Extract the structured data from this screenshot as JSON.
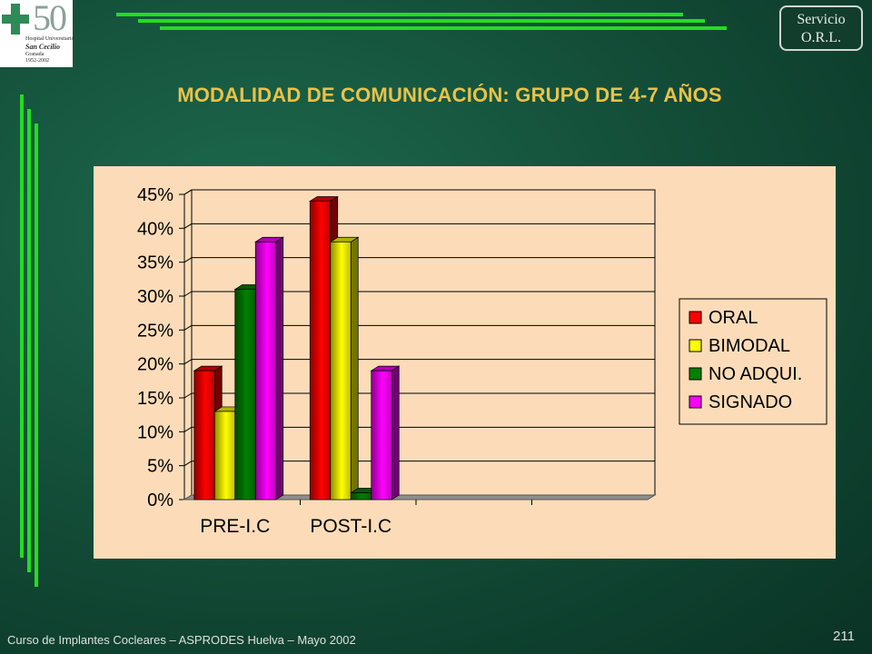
{
  "logo": {
    "number": "50",
    "line1": "Hospital Universitario",
    "line2": "San Cecilio",
    "line3": "Granada",
    "line4": "1952-2002"
  },
  "service_badge": {
    "line1": "Servicio",
    "line2": "O.R.L."
  },
  "title": "MODALIDAD DE COMUNICACIÓN: GRUPO DE 4-7 AÑOS",
  "footer": "Curso de Implantes Cocleares – ASPRODES Huelva – Mayo 2002",
  "page_number": "211",
  "chart_data": {
    "type": "bar",
    "title": "",
    "xlabel": "",
    "ylabel": "",
    "categories": [
      "PRE-I.C",
      "POST-I.C",
      "",
      ""
    ],
    "ylim": [
      0,
      45
    ],
    "yticks": [
      "0%",
      "5%",
      "10%",
      "15%",
      "20%",
      "25%",
      "30%",
      "35%",
      "40%",
      "45%"
    ],
    "grid": true,
    "legend_position": "right",
    "series": [
      {
        "name": "ORAL",
        "color": "#ff0000",
        "values": [
          19,
          44,
          null,
          null
        ]
      },
      {
        "name": "BIMODAL",
        "color": "#ffff00",
        "values": [
          13,
          38,
          null,
          null
        ]
      },
      {
        "name": "NO ADQUI.",
        "color": "#008000",
        "values": [
          31,
          1,
          null,
          null
        ]
      },
      {
        "name": "SIGNADO",
        "color": "#ff00ff",
        "values": [
          38,
          19,
          null,
          null
        ]
      }
    ]
  }
}
